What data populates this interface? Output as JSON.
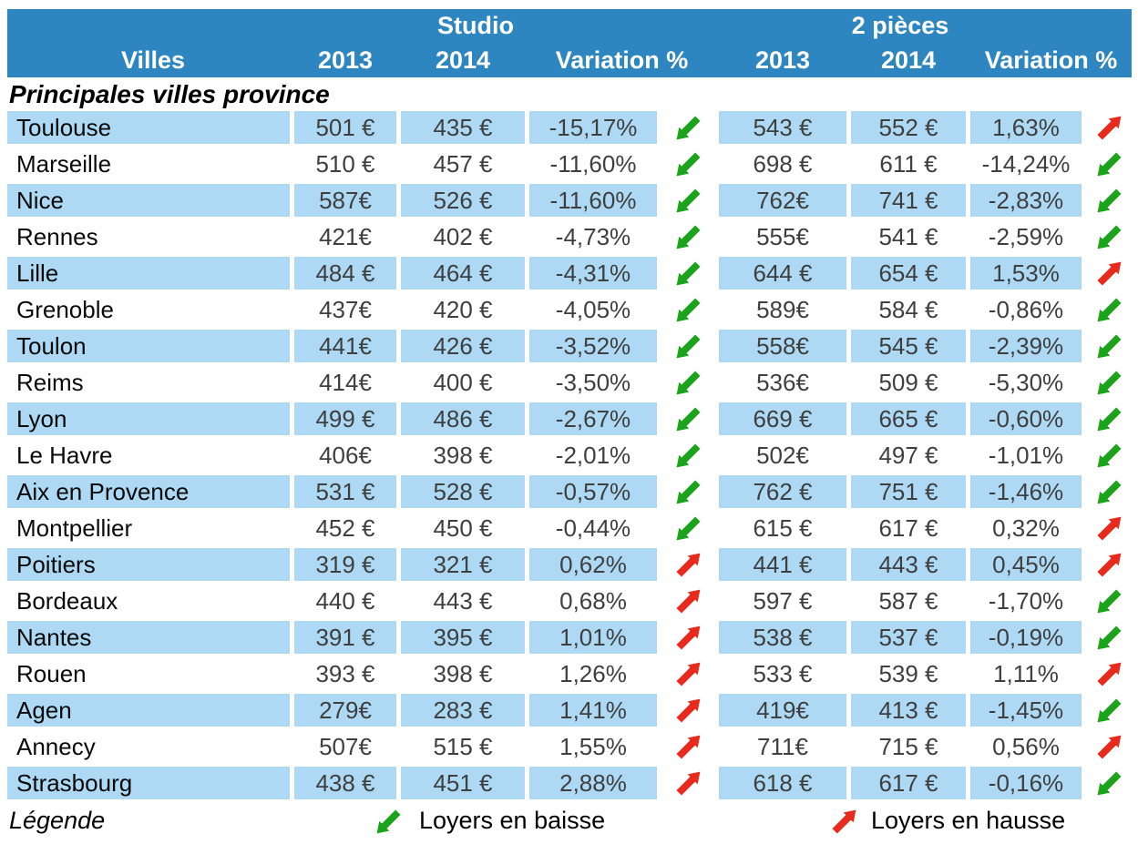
{
  "chart_data": {
    "type": "table",
    "column_groups": [
      "Studio",
      "2 pièces"
    ],
    "columns": [
      "Villes",
      "2013",
      "2014",
      "Variation %",
      "2013",
      "2014",
      "Variation %"
    ],
    "section_title": "Principales villes province",
    "rows": [
      {
        "city": "Toulouse",
        "s2013": "501 €",
        "s2014": "435 €",
        "svar": "-15,17%",
        "strend": "down",
        "p2013": "543 €",
        "p2014": "552 €",
        "pvar": "1,63%",
        "ptrend": "up"
      },
      {
        "city": "Marseille",
        "s2013": "510 €",
        "s2014": "457 €",
        "svar": "-11,60%",
        "strend": "down",
        "p2013": "698 €",
        "p2014": "611 €",
        "pvar": "-14,24%",
        "ptrend": "down"
      },
      {
        "city": "Nice",
        "s2013": "587€",
        "s2014": "526 €",
        "svar": "-11,60%",
        "strend": "down",
        "p2013": "762€",
        "p2014": "741 €",
        "pvar": "-2,83%",
        "ptrend": "down"
      },
      {
        "city": "Rennes",
        "s2013": "421€",
        "s2014": "402 €",
        "svar": "-4,73%",
        "strend": "down",
        "p2013": "555€",
        "p2014": "541 €",
        "pvar": "-2,59%",
        "ptrend": "down"
      },
      {
        "city": "Lille",
        "s2013": "484 €",
        "s2014": "464 €",
        "svar": "-4,31%",
        "strend": "down",
        "p2013": "644 €",
        "p2014": "654 €",
        "pvar": "1,53%",
        "ptrend": "up"
      },
      {
        "city": "Grenoble",
        "s2013": "437€",
        "s2014": "420 €",
        "svar": "-4,05%",
        "strend": "down",
        "p2013": "589€",
        "p2014": "584 €",
        "pvar": "-0,86%",
        "ptrend": "down"
      },
      {
        "city": "Toulon",
        "s2013": "441€",
        "s2014": "426 €",
        "svar": "-3,52%",
        "strend": "down",
        "p2013": "558€",
        "p2014": "545 €",
        "pvar": "-2,39%",
        "ptrend": "down"
      },
      {
        "city": "Reims",
        "s2013": "414€",
        "s2014": "400 €",
        "svar": "-3,50%",
        "strend": "down",
        "p2013": "536€",
        "p2014": "509 €",
        "pvar": "-5,30%",
        "ptrend": "down"
      },
      {
        "city": "Lyon",
        "s2013": "499 €",
        "s2014": "486 €",
        "svar": "-2,67%",
        "strend": "down",
        "p2013": "669 €",
        "p2014": "665 €",
        "pvar": "-0,60%",
        "ptrend": "down"
      },
      {
        "city": "Le Havre",
        "s2013": "406€",
        "s2014": "398 €",
        "svar": "-2,01%",
        "strend": "down",
        "p2013": "502€",
        "p2014": "497 €",
        "pvar": "-1,01%",
        "ptrend": "down"
      },
      {
        "city": "Aix en Provence",
        "s2013": "531 €",
        "s2014": "528 €",
        "svar": "-0,57%",
        "strend": "down",
        "p2013": "762 €",
        "p2014": "751 €",
        "pvar": "-1,46%",
        "ptrend": "down"
      },
      {
        "city": "Montpellier",
        "s2013": "452 €",
        "s2014": "450 €",
        "svar": "-0,44%",
        "strend": "down",
        "p2013": "615 €",
        "p2014": "617 €",
        "pvar": "0,32%",
        "ptrend": "up"
      },
      {
        "city": "Poitiers",
        "s2013": "319 €",
        "s2014": "321 €",
        "svar": "0,62%",
        "strend": "up",
        "p2013": "441 €",
        "p2014": "443 €",
        "pvar": "0,45%",
        "ptrend": "up"
      },
      {
        "city": "Bordeaux",
        "s2013": "440 €",
        "s2014": "443 €",
        "svar": "0,68%",
        "strend": "up",
        "p2013": "597 €",
        "p2014": "587 €",
        "pvar": "-1,70%",
        "ptrend": "down"
      },
      {
        "city": "Nantes",
        "s2013": "391 €",
        "s2014": "395 €",
        "svar": "1,01%",
        "strend": "up",
        "p2013": "538 €",
        "p2014": "537 €",
        "pvar": "-0,19%",
        "ptrend": "down"
      },
      {
        "city": "Rouen",
        "s2013": "393 €",
        "s2014": "398 €",
        "svar": "1,26%",
        "strend": "up",
        "p2013": "533 €",
        "p2014": "539 €",
        "pvar": "1,11%",
        "ptrend": "up"
      },
      {
        "city": "Agen",
        "s2013": "279€",
        "s2014": "283 €",
        "svar": "1,41%",
        "strend": "up",
        "p2013": "419€",
        "p2014": "413 €",
        "pvar": "-1,45%",
        "ptrend": "down"
      },
      {
        "city": "Annecy",
        "s2013": "507€",
        "s2014": "515 €",
        "svar": "1,55%",
        "strend": "up",
        "p2013": "711€",
        "p2014": "715 €",
        "pvar": "0,56%",
        "ptrend": "up"
      },
      {
        "city": "Strasbourg",
        "s2013": "438 €",
        "s2014": "451 €",
        "svar": "2,88%",
        "strend": "up",
        "p2013": "618 €",
        "p2014": "617 €",
        "pvar": "-0,16%",
        "ptrend": "down"
      }
    ]
  },
  "header": {
    "group_studio": "Studio",
    "group_2pieces": "2 pièces",
    "villes": "Villes",
    "col_2013": "2013",
    "col_2014": "2014",
    "col_variation": "Variation %"
  },
  "section_title": "Principales villes province",
  "legend": {
    "label": "Légende",
    "down_text": "Loyers en baisse",
    "up_text": "Loyers en hausse"
  },
  "colors": {
    "header_blue": "#2E86C1",
    "row_blue": "#ADD9F4",
    "arrow_green": "#1BA41B",
    "arrow_red": "#E82A1C",
    "value_gray": "#3F3F3F"
  }
}
